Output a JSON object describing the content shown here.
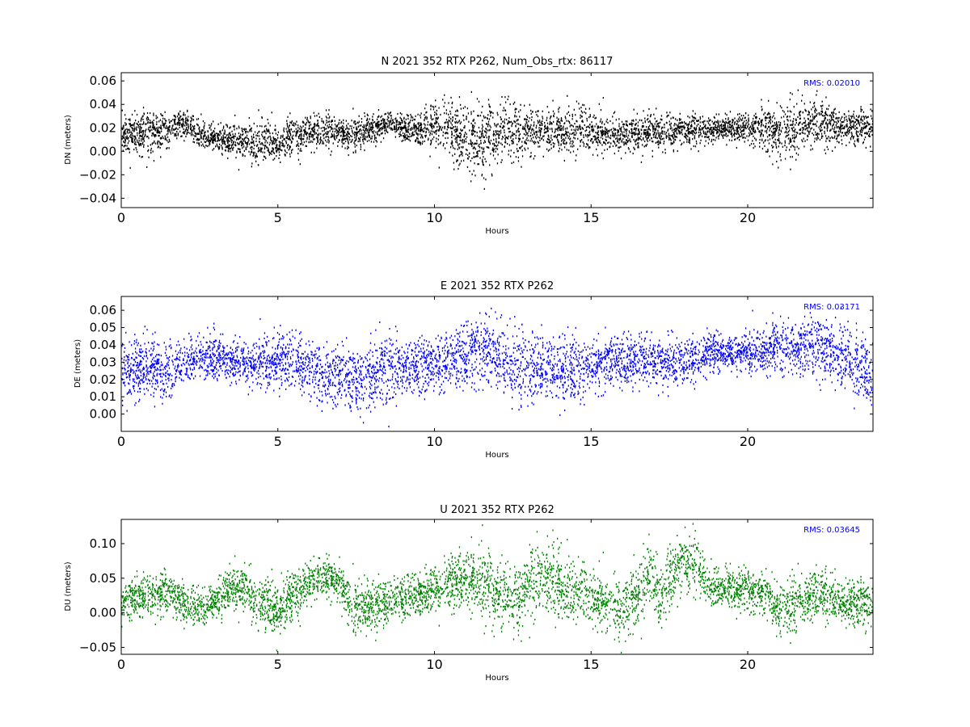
{
  "chart_data": [
    {
      "type": "scatter",
      "title": "N 2021 352 RTX  P262, Num_Obs_rtx: 86117",
      "xlabel": "Hours",
      "ylabel": "DN (meters)",
      "xlim": [
        0,
        24
      ],
      "ylim": [
        -0.048,
        0.067
      ],
      "xticks": [
        0,
        5,
        10,
        15,
        20
      ],
      "yticks": [
        -0.04,
        -0.02,
        0.0,
        0.02,
        0.04,
        0.06
      ],
      "ytick_labels": [
        "−0.04",
        "−0.02",
        "0.00",
        "0.02",
        "0.04",
        "0.06"
      ],
      "grid": false,
      "annotation": "RMS:  0.02010",
      "color": "#000000",
      "annotation_color": "#0000ff",
      "series": [
        {
          "x": [
            0,
            0.5,
            1,
            1.5,
            1.8,
            2.2,
            2.5,
            3,
            3.5,
            4,
            4.5,
            5,
            5.5,
            6,
            6.5,
            7,
            7.5,
            8,
            8.5,
            9,
            9.5,
            10,
            10.5,
            11,
            11.5,
            12,
            12.5,
            13,
            13.5,
            14,
            14.5,
            15,
            15.5,
            16,
            16.5,
            17,
            17.5,
            18,
            18.5,
            19,
            19.5,
            20,
            20.5,
            21,
            21.5,
            22,
            22.5,
            23,
            23.5,
            24
          ],
          "y": [
            0.015,
            0.016,
            0.018,
            0.016,
            0.025,
            0.022,
            0.014,
            0.012,
            0.01,
            0.009,
            0.01,
            0.008,
            0.013,
            0.016,
            0.019,
            0.015,
            0.014,
            0.02,
            0.024,
            0.02,
            0.019,
            0.021,
            0.018,
            0.012,
            0.01,
            0.016,
            0.02,
            0.015,
            0.018,
            0.016,
            0.019,
            0.018,
            0.017,
            0.015,
            0.016,
            0.018,
            0.017,
            0.018,
            0.019,
            0.02,
            0.02,
            0.021,
            0.019,
            0.018,
            0.022,
            0.024,
            0.023,
            0.022,
            0.022,
            0.02
          ],
          "spread": [
            0.01,
            0.012,
            0.012,
            0.01,
            0.008,
            0.007,
            0.008,
            0.008,
            0.01,
            0.011,
            0.011,
            0.013,
            0.01,
            0.009,
            0.01,
            0.01,
            0.009,
            0.008,
            0.007,
            0.007,
            0.008,
            0.014,
            0.017,
            0.02,
            0.021,
            0.016,
            0.015,
            0.014,
            0.012,
            0.011,
            0.012,
            0.011,
            0.01,
            0.009,
            0.01,
            0.01,
            0.01,
            0.009,
            0.008,
            0.007,
            0.007,
            0.008,
            0.013,
            0.016,
            0.015,
            0.014,
            0.012,
            0.01,
            0.01,
            0.01
          ]
        }
      ]
    },
    {
      "type": "scatter",
      "title": "E 2021 352 RTX  P262",
      "xlabel": "Hours",
      "ylabel": "DE (meters)",
      "xlim": [
        0,
        24
      ],
      "ylim": [
        -0.01,
        0.068
      ],
      "xticks": [
        0,
        5,
        10,
        15,
        20
      ],
      "yticks": [
        0.0,
        0.01,
        0.02,
        0.03,
        0.04,
        0.05,
        0.06
      ],
      "ytick_labels": [
        "0.00",
        "0.01",
        "0.02",
        "0.03",
        "0.04",
        "0.05",
        "0.06"
      ],
      "grid": false,
      "annotation": "RMS:  0.03171",
      "color": "#0000ff",
      "annotation_color": "#0000ff",
      "series": [
        {
          "x": [
            0,
            0.5,
            1,
            1.5,
            2,
            2.5,
            3,
            3.5,
            4,
            4.5,
            5,
            5.5,
            6,
            6.5,
            7,
            7.5,
            8,
            8.5,
            9,
            9.5,
            10,
            10.5,
            11,
            11.5,
            12,
            12.5,
            13,
            13.5,
            14,
            14.5,
            15,
            15.5,
            16,
            16.5,
            17,
            17.5,
            18,
            18.5,
            19,
            19.5,
            20,
            20.5,
            21,
            21.5,
            22,
            22.5,
            23,
            23.5,
            24
          ],
          "y": [
            0.026,
            0.025,
            0.026,
            0.025,
            0.03,
            0.033,
            0.033,
            0.032,
            0.029,
            0.029,
            0.032,
            0.033,
            0.025,
            0.022,
            0.022,
            0.022,
            0.022,
            0.026,
            0.028,
            0.027,
            0.029,
            0.031,
            0.035,
            0.038,
            0.035,
            0.028,
            0.027,
            0.028,
            0.026,
            0.025,
            0.03,
            0.031,
            0.032,
            0.032,
            0.031,
            0.031,
            0.032,
            0.034,
            0.036,
            0.036,
            0.036,
            0.038,
            0.039,
            0.04,
            0.039,
            0.038,
            0.032,
            0.028,
            0.024
          ],
          "spread": [
            0.012,
            0.012,
            0.011,
            0.01,
            0.009,
            0.008,
            0.008,
            0.008,
            0.009,
            0.01,
            0.01,
            0.011,
            0.012,
            0.012,
            0.012,
            0.012,
            0.012,
            0.013,
            0.01,
            0.01,
            0.01,
            0.011,
            0.013,
            0.013,
            0.013,
            0.014,
            0.014,
            0.014,
            0.013,
            0.012,
            0.01,
            0.009,
            0.009,
            0.009,
            0.009,
            0.009,
            0.009,
            0.007,
            0.007,
            0.007,
            0.008,
            0.009,
            0.01,
            0.01,
            0.011,
            0.011,
            0.012,
            0.012,
            0.012
          ]
        }
      ]
    },
    {
      "type": "scatter",
      "title": "U 2021 352 RTX  P262",
      "xlabel": "Hours",
      "ylabel": "DU (meters)",
      "xlim": [
        0,
        24
      ],
      "ylim": [
        -0.06,
        0.135
      ],
      "xticks": [
        0,
        5,
        10,
        15,
        20
      ],
      "yticks": [
        -0.05,
        0.0,
        0.05,
        0.1
      ],
      "ytick_labels": [
        "−0.05",
        "0.00",
        "0.05",
        "0.10"
      ],
      "grid": false,
      "annotation": "RMS:  0.03645",
      "color": "#008000",
      "annotation_color": "#0000ff",
      "series": [
        {
          "x": [
            0,
            0.5,
            1,
            1.5,
            2,
            2.5,
            3,
            3.5,
            3.8,
            4.2,
            4.5,
            5,
            5.5,
            6,
            6.5,
            7,
            7.5,
            8,
            8.5,
            9,
            9.5,
            10,
            10.5,
            11,
            11.5,
            12,
            12.5,
            13,
            13.5,
            14,
            14.5,
            15,
            15.5,
            16,
            16.5,
            16.8,
            17.2,
            17.5,
            18,
            18.3,
            18.7,
            19,
            19.5,
            20,
            20.5,
            21,
            21.5,
            22,
            22.5,
            23,
            23.5,
            24
          ],
          "y": [
            0.015,
            0.025,
            0.03,
            0.03,
            0.015,
            0.01,
            0.02,
            0.035,
            0.04,
            0.025,
            0.015,
            0.005,
            0.03,
            0.045,
            0.055,
            0.04,
            0.005,
            0.01,
            0.015,
            0.02,
            0.03,
            0.03,
            0.045,
            0.05,
            0.045,
            0.03,
            0.02,
            0.035,
            0.055,
            0.035,
            0.03,
            0.025,
            0.015,
            0.005,
            0.03,
            0.06,
            0.02,
            0.05,
            0.075,
            0.07,
            0.045,
            0.035,
            0.035,
            0.035,
            0.025,
            0.005,
            0.02,
            0.025,
            0.025,
            0.015,
            0.015,
            0.015
          ],
          "spread": [
            0.018,
            0.018,
            0.02,
            0.02,
            0.02,
            0.018,
            0.018,
            0.022,
            0.022,
            0.022,
            0.025,
            0.028,
            0.022,
            0.02,
            0.018,
            0.02,
            0.025,
            0.025,
            0.022,
            0.02,
            0.02,
            0.022,
            0.025,
            0.03,
            0.035,
            0.03,
            0.03,
            0.035,
            0.035,
            0.03,
            0.025,
            0.025,
            0.025,
            0.028,
            0.03,
            0.03,
            0.028,
            0.03,
            0.03,
            0.03,
            0.022,
            0.018,
            0.018,
            0.02,
            0.022,
            0.025,
            0.025,
            0.025,
            0.022,
            0.022,
            0.022,
            0.025
          ]
        }
      ]
    }
  ]
}
